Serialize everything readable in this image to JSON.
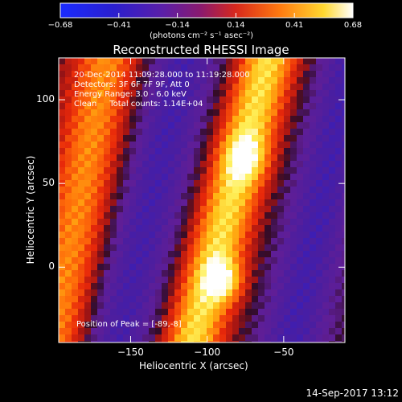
{
  "chart_data": {
    "type": "heatmap",
    "title": "Reconstructed RHESSI Image",
    "xlabel": "Heliocentric X (arcsec)",
    "ylabel": "Heliocentric Y (arcsec)",
    "xlim": [
      -197,
      -10
    ],
    "ylim": [
      -45,
      125
    ],
    "x_ticks": [
      -150,
      -100,
      -50
    ],
    "x_tick_labels": [
      "−150",
      "−100",
      "−50"
    ],
    "y_ticks": [
      0,
      50,
      100
    ],
    "y_tick_labels": [
      "0",
      "50",
      "100"
    ],
    "colorbar": {
      "min": -0.68,
      "max": 0.68,
      "tick_labels": [
        "−0.68",
        "−0.41",
        "−0.14",
        "0.14",
        "0.41",
        "0.68"
      ],
      "unit_label": "(photons cm⁻² s⁻¹ asec⁻²)",
      "colormap": "blue-purple-red-yellow-white"
    },
    "annotations": {
      "time_range": "20-Dec-2014 11:09:28.000 to 11:19:28.000",
      "detectors": "Detectors: 3F 6F 7F 9F, Att 0",
      "energy": "Energy Range: 3.0 - 6.0 keV",
      "method": "Clean     Total counts: 1.14E+04",
      "peak": "Position of Peak = [-89,-8]"
    },
    "peak_position": [
      -89,
      -8
    ],
    "bright_ridges": [
      {
        "x_at_bottom": -110,
        "x_at_top": -60
      },
      {
        "x_at_bottom": -200,
        "x_at_top": -165
      }
    ],
    "dark_troughs": [
      {
        "x_at_bottom": -160,
        "x_at_top": -115
      },
      {
        "x_at_bottom": -45,
        "x_at_top": -5
      }
    ]
  },
  "footer": {
    "timestamp": "14-Sep-2017 13:12"
  }
}
